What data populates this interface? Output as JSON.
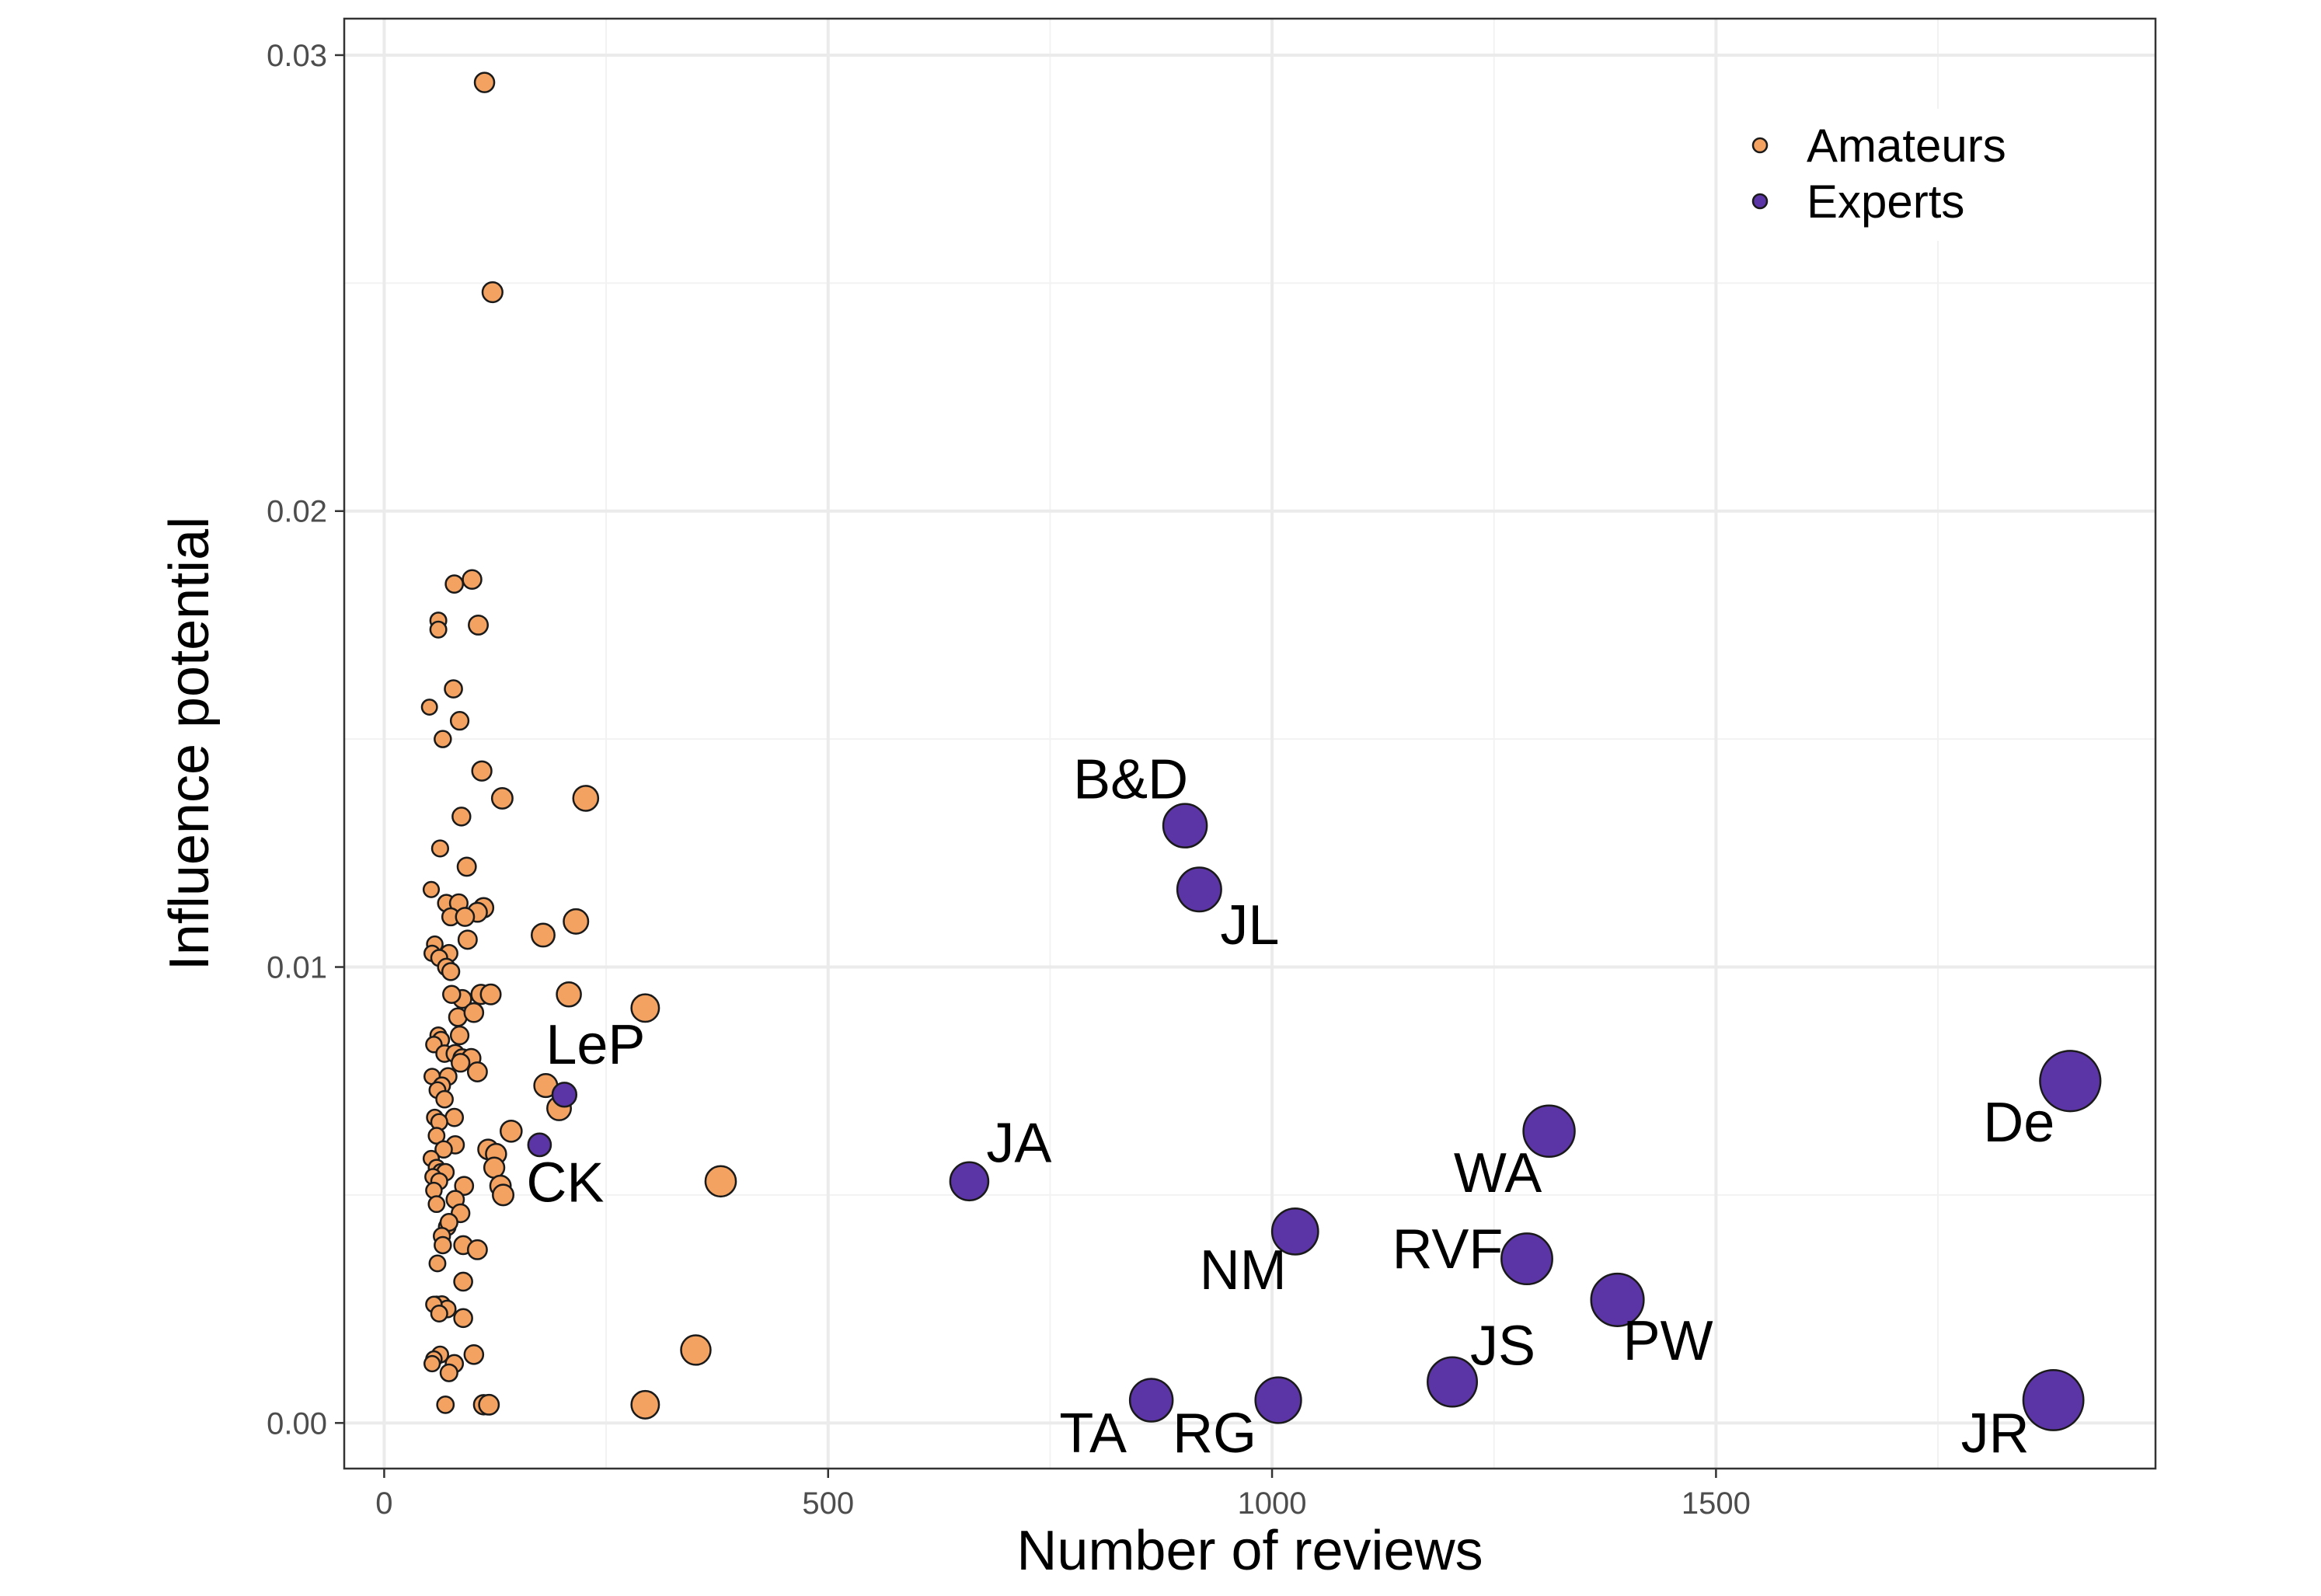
{
  "chart_data": {
    "type": "scatter",
    "xlabel": "Number of reviews",
    "ylabel": "Influence potential",
    "xlim": [
      -45,
      1995
    ],
    "ylim": [
      -0.001,
      0.0308
    ],
    "xticks": [
      0,
      500,
      1000,
      1500
    ],
    "xtick_labels": [
      "0",
      "500",
      "1000",
      "1500"
    ],
    "yticks": [
      0.0,
      0.01,
      0.02,
      0.03
    ],
    "ytick_labels": [
      "0.00",
      "0.01",
      "0.02",
      "0.03"
    ],
    "grid": true,
    "legend_position": "top-right",
    "colors": {
      "Amateurs": "#f4a261",
      "Experts": "#5b35a5",
      "point_outline": "#1a1a1a"
    },
    "legend": [
      {
        "name": "Amateurs"
      },
      {
        "name": "Experts"
      }
    ],
    "series": [
      {
        "name": "Amateurs",
        "points": [
          [
            113,
            0.0294
          ],
          [
            122,
            0.0248
          ],
          [
            99,
            0.0185
          ],
          [
            79,
            0.0184
          ],
          [
            106,
            0.0175
          ],
          [
            61,
            0.0176
          ],
          [
            61,
            0.0174
          ],
          [
            78,
            0.0161
          ],
          [
            51,
            0.0157
          ],
          [
            85,
            0.0154
          ],
          [
            66,
            0.015
          ],
          [
            110,
            0.0143
          ],
          [
            133,
            0.0137
          ],
          [
            227,
            0.0137
          ],
          [
            87,
            0.0133
          ],
          [
            63,
            0.0126
          ],
          [
            93,
            0.0122
          ],
          [
            53,
            0.0117
          ],
          [
            70,
            0.0114
          ],
          [
            84,
            0.0114
          ],
          [
            112,
            0.0113
          ],
          [
            105,
            0.0112
          ],
          [
            75,
            0.0111
          ],
          [
            91,
            0.0111
          ],
          [
            216,
            0.011
          ],
          [
            179,
            0.0107
          ],
          [
            94,
            0.0106
          ],
          [
            57,
            0.0105
          ],
          [
            54,
            0.0103
          ],
          [
            73,
            0.0103
          ],
          [
            62,
            0.0102
          ],
          [
            70,
            0.01
          ],
          [
            75,
            0.0099
          ],
          [
            88,
            0.0093
          ],
          [
            109,
            0.0094
          ],
          [
            120,
            0.0094
          ],
          [
            208,
            0.0094
          ],
          [
            76,
            0.0094
          ],
          [
            294,
            0.0091
          ],
          [
            83,
            0.0089
          ],
          [
            101,
            0.009
          ],
          [
            61,
            0.0085
          ],
          [
            64,
            0.0084
          ],
          [
            85,
            0.0085
          ],
          [
            56,
            0.0083
          ],
          [
            68,
            0.0081
          ],
          [
            80,
            0.0081
          ],
          [
            88,
            0.008
          ],
          [
            98,
            0.008
          ],
          [
            86,
            0.0079
          ],
          [
            105,
            0.0077
          ],
          [
            54,
            0.0076
          ],
          [
            72,
            0.0076
          ],
          [
            65,
            0.0074
          ],
          [
            60,
            0.0073
          ],
          [
            182,
            0.0074
          ],
          [
            68,
            0.0071
          ],
          [
            197,
            0.0069
          ],
          [
            79,
            0.0067
          ],
          [
            57,
            0.0067
          ],
          [
            62,
            0.0066
          ],
          [
            143,
            0.0064
          ],
          [
            59,
            0.0063
          ],
          [
            80,
            0.0061
          ],
          [
            67,
            0.006
          ],
          [
            117,
            0.006
          ],
          [
            126,
            0.0059
          ],
          [
            53,
            0.0058
          ],
          [
            59,
            0.0056
          ],
          [
            124,
            0.0056
          ],
          [
            64,
            0.0055
          ],
          [
            69,
            0.0055
          ],
          [
            55,
            0.0054
          ],
          [
            379,
            0.0053
          ],
          [
            62,
            0.0053
          ],
          [
            131,
            0.0052
          ],
          [
            90,
            0.0052
          ],
          [
            56,
            0.0051
          ],
          [
            134,
            0.005
          ],
          [
            80,
            0.0049
          ],
          [
            59,
            0.0048
          ],
          [
            86,
            0.0046
          ],
          [
            71,
            0.0043
          ],
          [
            73,
            0.0044
          ],
          [
            65,
            0.0041
          ],
          [
            66,
            0.0039
          ],
          [
            89,
            0.0039
          ],
          [
            105,
            0.0038
          ],
          [
            60,
            0.0035
          ],
          [
            89,
            0.0031
          ],
          [
            59,
            0.0026
          ],
          [
            65,
            0.0026
          ],
          [
            71,
            0.0025
          ],
          [
            56,
            0.0026
          ],
          [
            62,
            0.0024
          ],
          [
            89,
            0.0023
          ],
          [
            351,
            0.0016
          ],
          [
            101,
            0.0015
          ],
          [
            63,
            0.0015
          ],
          [
            56,
            0.0014
          ],
          [
            54,
            0.0013
          ],
          [
            79,
            0.0013
          ],
          [
            73,
            0.0011
          ],
          [
            294,
            0.0004
          ],
          [
            112,
            0.0004
          ],
          [
            118,
            0.0004
          ],
          [
            69,
            0.0004
          ]
        ]
      },
      {
        "name": "Experts",
        "points": [
          {
            "label": "B&D",
            "x": 902,
            "y": 0.0131
          },
          {
            "label": "JL",
            "x": 918,
            "y": 0.0117
          },
          {
            "label": "LeP",
            "x": 203,
            "y": 0.0072
          },
          {
            "label": "CK",
            "x": 175,
            "y": 0.0061
          },
          {
            "label": "JA",
            "x": 659,
            "y": 0.0053
          },
          {
            "label": "De",
            "x": 1899,
            "y": 0.0075
          },
          {
            "label": "WA",
            "x": 1312,
            "y": 0.0064
          },
          {
            "label": "NM",
            "x": 1026,
            "y": 0.0042
          },
          {
            "label": "RVF",
            "x": 1287,
            "y": 0.0036
          },
          {
            "label": "PW",
            "x": 1389,
            "y": 0.0027
          },
          {
            "label": "JS",
            "x": 1203,
            "y": 0.0009
          },
          {
            "label": "TA",
            "x": 864,
            "y": 0.0005
          },
          {
            "label": "RG",
            "x": 1007,
            "y": 0.0005
          },
          {
            "label": "JR",
            "x": 1880,
            "y": 0.0005
          }
        ]
      }
    ]
  }
}
